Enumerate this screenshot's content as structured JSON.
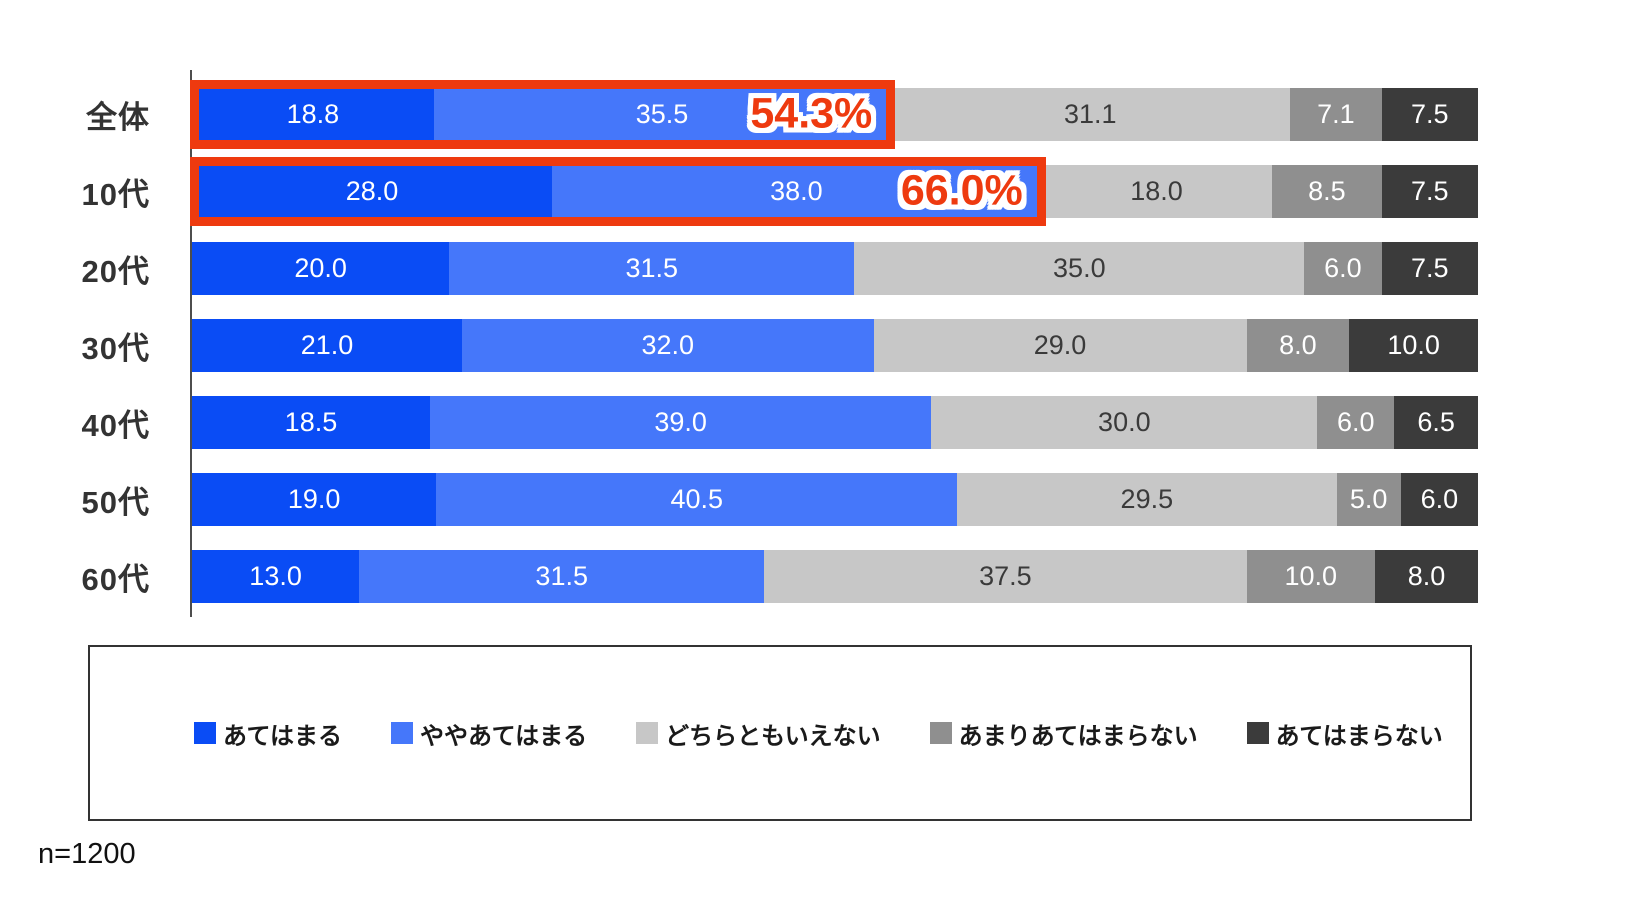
{
  "chart_data": {
    "type": "bar",
    "orientation": "horizontal",
    "stacked": true,
    "xlim": [
      0,
      100
    ],
    "grid": false,
    "legend_position": "bottom-boxed",
    "categories": [
      "全体",
      "10代",
      "20代",
      "30代",
      "40代",
      "50代",
      "60代"
    ],
    "series": [
      {
        "name": "あてはまる",
        "color": "#0a4cf5",
        "label_color": "#ffffff",
        "values": [
          18.8,
          28.0,
          20.0,
          21.0,
          18.5,
          19.0,
          13.0
        ]
      },
      {
        "name": "ややあてはまる",
        "color": "#4577fa",
        "label_color": "#ffffff",
        "values": [
          35.5,
          38.0,
          31.5,
          32.0,
          39.0,
          40.5,
          31.5
        ]
      },
      {
        "name": "どちらともいえない",
        "color": "#c7c7c7",
        "label_color": "#3a3a3a",
        "values": [
          31.1,
          18.0,
          35.0,
          29.0,
          30.0,
          29.5,
          37.5
        ]
      },
      {
        "name": "あまりあてはまらない",
        "color": "#8f8f8f",
        "label_color": "#ffffff",
        "values": [
          7.1,
          8.5,
          6.0,
          8.0,
          6.0,
          5.0,
          10.0
        ]
      },
      {
        "name": "あてはまらない",
        "color": "#3b3b3b",
        "label_color": "#ffffff",
        "values": [
          7.5,
          7.5,
          7.5,
          10.0,
          6.5,
          6.0,
          8.0
        ]
      }
    ],
    "highlights": [
      {
        "row_index": 0,
        "label": "54.3%",
        "span_percent": 54.3,
        "color": "#ee3a0f"
      },
      {
        "row_index": 1,
        "label": "66.0%",
        "span_percent": 66.0,
        "color": "#ee3a0f"
      }
    ],
    "note": "n=1200"
  },
  "footer": {
    "sample_size": "n=1200"
  }
}
